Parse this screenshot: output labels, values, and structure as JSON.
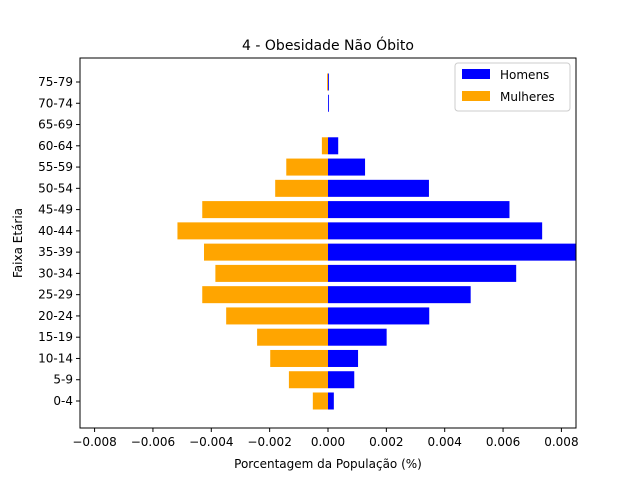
{
  "chart_data": {
    "type": "bar",
    "orientation": "horizontal",
    "title": "4 - Obesidade Não Óbito",
    "xlabel": "Porcentagem da População (%)",
    "ylabel": "Faixa Etária",
    "xlim": [
      -0.0085,
      0.0085
    ],
    "xticks": [
      -0.008,
      -0.006,
      -0.004,
      -0.002,
      0.0,
      0.002,
      0.004,
      0.006,
      0.008
    ],
    "xtick_labels": [
      "−0.008",
      "−0.006",
      "−0.004",
      "−0.002",
      "0.000",
      "0.002",
      "0.004",
      "0.006",
      "0.008"
    ],
    "categories": [
      "0-4",
      "5-9",
      "10-14",
      "15-19",
      "20-24",
      "25-29",
      "30-34",
      "35-39",
      "40-44",
      "45-49",
      "50-54",
      "55-59",
      "60-64",
      "65-69",
      "70-74",
      "75-79"
    ],
    "series": [
      {
        "name": "Homens",
        "color": "#0000ff",
        "values": [
          0.0002,
          0.0009,
          0.00103,
          0.00201,
          0.00347,
          0.00489,
          0.00645,
          0.0086,
          0.00734,
          0.00622,
          0.00346,
          0.00127,
          0.00035,
          0.0,
          3e-05,
          3e-05
        ]
      },
      {
        "name": "Mulheres",
        "color": "#ffa500",
        "values": [
          -0.00052,
          -0.00134,
          -0.00198,
          -0.00243,
          -0.00349,
          -0.00431,
          -0.00386,
          -0.00425,
          -0.00516,
          -0.00431,
          -0.00181,
          -0.00143,
          -0.00021,
          0.0,
          0.0,
          -3e-05
        ]
      }
    ],
    "legend": {
      "position": "upper right",
      "entries": [
        "Homens",
        "Mulheres"
      ]
    },
    "grid": false
  }
}
